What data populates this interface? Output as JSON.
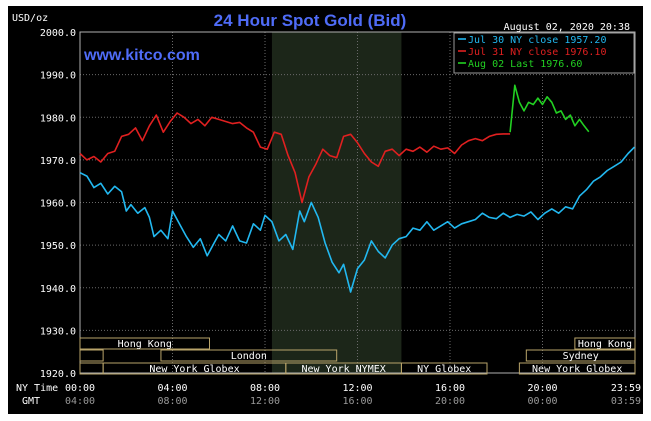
{
  "chart_data": {
    "type": "line",
    "title": "24 Hour Spot Gold (Bid)",
    "ylabel": "USD/oz",
    "watermark": "www.kitco.com",
    "timestamp": "August 02, 2020 20:38",
    "ylim": [
      1920,
      2000
    ],
    "yticks": [
      "2000.0",
      "1990.0",
      "1980.0",
      "1970.0",
      "1960.0",
      "1950.0",
      "1940.0",
      "1930.0",
      "1920.0"
    ],
    "x_hours": [
      0,
      24
    ],
    "xticks_ny": [
      "00:00",
      "04:00",
      "08:00",
      "12:00",
      "16:00",
      "20:00",
      "23:59"
    ],
    "xticks_gmt": [
      "04:00",
      "08:00",
      "12:00",
      "16:00",
      "20:00",
      "00:00",
      "03:59"
    ],
    "row_label_ny": "NY Time",
    "row_label_gmt": "GMT",
    "legend_placement": "top-right",
    "series": [
      {
        "name": "Jul 30 NY close 1957.20",
        "color": "#22b8f0",
        "x": [
          0,
          0.3,
          0.6,
          0.9,
          1.2,
          1.5,
          1.8,
          2.0,
          2.2,
          2.5,
          2.8,
          3.0,
          3.2,
          3.5,
          3.8,
          4.0,
          4.3,
          4.6,
          4.9,
          5.2,
          5.5,
          5.8,
          6.0,
          6.3,
          6.6,
          6.9,
          7.2,
          7.5,
          7.8,
          8.0,
          8.3,
          8.6,
          8.9,
          9.2,
          9.5,
          9.7,
          10.0,
          10.3,
          10.6,
          10.9,
          11.2,
          11.4,
          11.7,
          12.0,
          12.3,
          12.6,
          12.9,
          13.2,
          13.5,
          13.8,
          14.1,
          14.4,
          14.7,
          15.0,
          15.3,
          15.6,
          15.9,
          16.2,
          16.5,
          16.8,
          17.1,
          17.4,
          17.7,
          18.0,
          18.3,
          18.6,
          18.9,
          19.2,
          19.5,
          19.8,
          20.1,
          20.4,
          20.7,
          21.0,
          21.3,
          21.6,
          21.9,
          22.2,
          22.5,
          22.8,
          23.1,
          23.4,
          23.7,
          23.98
        ],
        "y": [
          1967.0,
          1966.2,
          1963.5,
          1964.5,
          1962.0,
          1963.8,
          1962.5,
          1958.0,
          1959.5,
          1957.5,
          1958.8,
          1956.5,
          1952.0,
          1953.5,
          1951.5,
          1958.0,
          1955.0,
          1952.0,
          1949.5,
          1951.5,
          1947.5,
          1950.5,
          1952.5,
          1951.0,
          1954.5,
          1951.0,
          1950.5,
          1955.0,
          1953.5,
          1957.0,
          1955.5,
          1951.0,
          1952.5,
          1949.0,
          1958.0,
          1955.5,
          1960.0,
          1956.5,
          1950.5,
          1946.0,
          1943.5,
          1945.5,
          1939.0,
          1944.5,
          1946.5,
          1951.0,
          1948.5,
          1947.0,
          1950.0,
          1951.5,
          1952.0,
          1954.0,
          1953.5,
          1955.5,
          1953.5,
          1954.5,
          1955.5,
          1954.0,
          1955.0,
          1955.5,
          1956.0,
          1957.5,
          1956.5,
          1956.2,
          1957.5,
          1956.5,
          1957.2,
          1956.8,
          1957.8,
          1956.0,
          1957.5,
          1958.5,
          1957.5,
          1959.0,
          1958.5,
          1961.5,
          1963.0,
          1965.0,
          1966.0,
          1967.5,
          1968.5,
          1969.5,
          1971.5,
          1973.0
        ]
      },
      {
        "name": "Jul 31 NY close 1976.10",
        "color": "#e02020",
        "x": [
          0,
          0.3,
          0.6,
          0.9,
          1.2,
          1.5,
          1.8,
          2.1,
          2.4,
          2.7,
          3.0,
          3.3,
          3.6,
          3.9,
          4.2,
          4.5,
          4.8,
          5.1,
          5.4,
          5.7,
          6.0,
          6.3,
          6.6,
          6.9,
          7.2,
          7.5,
          7.8,
          8.1,
          8.4,
          8.7,
          9.0,
          9.3,
          9.6,
          9.9,
          10.2,
          10.5,
          10.8,
          11.1,
          11.4,
          11.7,
          12.0,
          12.3,
          12.6,
          12.9,
          13.2,
          13.5,
          13.8,
          14.1,
          14.4,
          14.7,
          15.0,
          15.3,
          15.6,
          15.9,
          16.2,
          16.5,
          16.8,
          17.1,
          17.4,
          17.7,
          18.0,
          18.3,
          18.6
        ],
        "y": [
          1971.5,
          1970.0,
          1970.8,
          1969.5,
          1971.5,
          1972.0,
          1975.5,
          1976.0,
          1977.5,
          1974.5,
          1978.0,
          1980.5,
          1976.5,
          1979.0,
          1981.0,
          1980.0,
          1978.5,
          1979.5,
          1978.0,
          1980.0,
          1979.5,
          1979.0,
          1978.5,
          1978.8,
          1977.5,
          1976.5,
          1973.0,
          1972.5,
          1976.5,
          1976.0,
          1971.0,
          1967.0,
          1960.0,
          1966.0,
          1969.0,
          1972.5,
          1971.0,
          1970.5,
          1975.5,
          1976.0,
          1974.0,
          1971.5,
          1969.5,
          1968.5,
          1972.0,
          1972.5,
          1971.0,
          1972.5,
          1972.0,
          1973.0,
          1971.8,
          1973.2,
          1972.5,
          1972.8,
          1971.5,
          1973.5,
          1974.5,
          1975.0,
          1974.5,
          1975.5,
          1976.0,
          1976.1,
          1976.1
        ]
      },
      {
        "name": "Aug 02 Last 1976.60",
        "color": "#22d022",
        "x": [
          18.6,
          18.8,
          19.0,
          19.2,
          19.4,
          19.6,
          19.8,
          20.0,
          20.2,
          20.4,
          20.6,
          20.8,
          21.0,
          21.2,
          21.4,
          21.6,
          21.8,
          22.0
        ],
        "y": [
          1976.5,
          1987.5,
          1983.5,
          1981.5,
          1983.5,
          1983.0,
          1984.5,
          1983.0,
          1984.8,
          1983.5,
          1981.0,
          1981.5,
          1979.5,
          1980.5,
          1978.0,
          1979.5,
          1978.0,
          1976.6
        ]
      }
    ],
    "sessions": {
      "rows": [
        [
          {
            "label": "Hong Kong",
            "from": 0,
            "to": 5.6
          },
          {
            "label": "Hong Kong",
            "from": 21.4,
            "to": 24
          }
        ],
        [
          {
            "label": "",
            "from": 0,
            "to": 1.0
          },
          {
            "label": "London",
            "from": 3.5,
            "to": 11.1
          },
          {
            "label": "Sydney",
            "from": 19.3,
            "to": 24
          }
        ],
        [
          {
            "label": "",
            "from": 0,
            "to": 1.0
          },
          {
            "label": "New York Globex",
            "from": 1.0,
            "to": 8.9
          },
          {
            "label": "New York NYMEX",
            "from": 8.9,
            "to": 13.9
          },
          {
            "label": "NY Globex",
            "from": 13.9,
            "to": 17.6
          },
          {
            "label": "New York Globex",
            "from": 19.0,
            "to": 24
          }
        ]
      ],
      "highlight": {
        "from": 8.3,
        "to": 13.9
      }
    }
  }
}
